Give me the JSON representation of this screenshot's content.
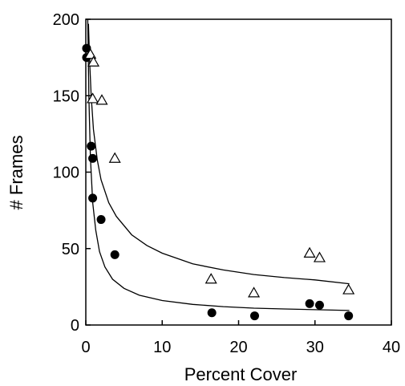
{
  "chart_data": {
    "type": "scatter",
    "title": "",
    "xlabel": "Percent Cover",
    "ylabel": "# Frames",
    "xlim": [
      0,
      40
    ],
    "ylim": [
      0,
      200
    ],
    "x_ticks": [
      0,
      10,
      20,
      30,
      40
    ],
    "y_ticks": [
      0,
      50,
      100,
      150,
      200
    ],
    "grid": false,
    "legend": "none",
    "series": [
      {
        "marker": "filled-circle",
        "color": "#000000",
        "points": [
          [
            0.1,
            181
          ],
          [
            0.1,
            175
          ],
          [
            0.7,
            117
          ],
          [
            0.9,
            109
          ],
          [
            0.9,
            83
          ],
          [
            2.0,
            69
          ],
          [
            3.8,
            46
          ],
          [
            16.5,
            8
          ],
          [
            22.1,
            6
          ],
          [
            29.3,
            14
          ],
          [
            30.6,
            13
          ],
          [
            34.4,
            6
          ]
        ]
      },
      {
        "marker": "open-triangle",
        "color": "#000000",
        "points": [
          [
            0.6,
            177
          ],
          [
            1.0,
            172
          ],
          [
            0.9,
            148
          ],
          [
            2.1,
            147
          ],
          [
            3.8,
            109
          ],
          [
            16.4,
            30
          ],
          [
            22.0,
            21
          ],
          [
            29.3,
            47
          ],
          [
            30.6,
            44
          ],
          [
            34.4,
            23
          ]
        ]
      }
    ],
    "fit_curves": [
      {
        "label": "upper-fit",
        "x": [
          0.35,
          0.5,
          0.7,
          1.0,
          1.5,
          2,
          3,
          4,
          6,
          8,
          10,
          14,
          18,
          22,
          26,
          30,
          34.5
        ],
        "y": [
          197,
          172,
          150,
          128,
          108,
          95,
          80,
          71,
          59,
          52,
          47,
          40,
          36,
          33,
          31,
          29.5,
          27
        ]
      },
      {
        "label": "lower-fit",
        "x": [
          0.25,
          0.4,
          0.6,
          0.9,
          1.3,
          1.8,
          2.5,
          3.5,
          5,
          7,
          10,
          14,
          18,
          22,
          26,
          30,
          34.5
        ],
        "y": [
          200,
          150,
          110,
          80,
          62,
          48,
          38,
          30,
          24,
          19.5,
          16,
          13.5,
          12,
          11,
          10.5,
          10,
          9.5
        ]
      }
    ]
  }
}
